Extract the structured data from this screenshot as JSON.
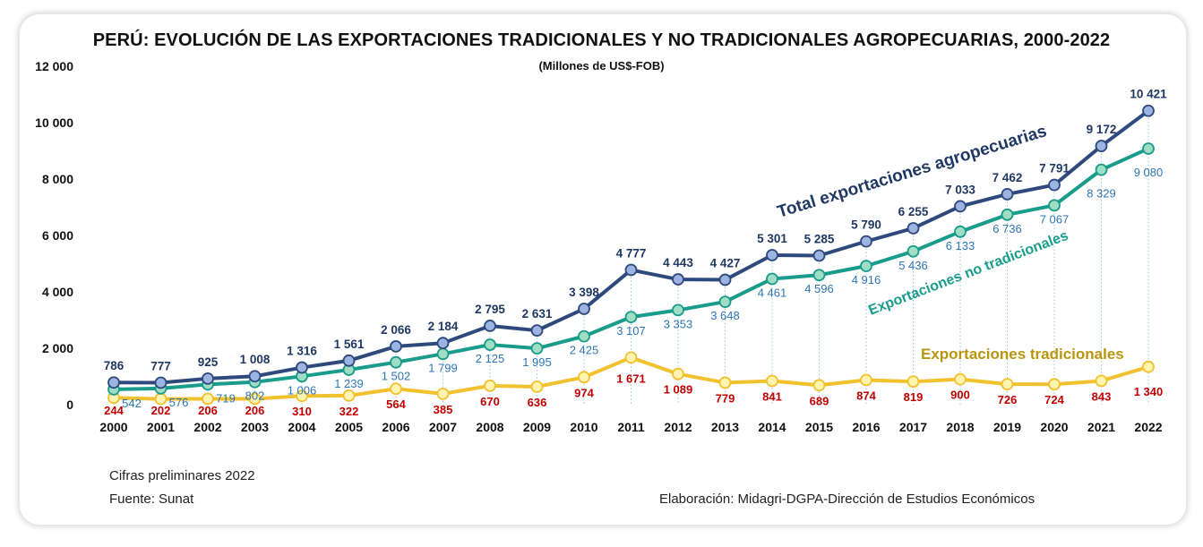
{
  "colors": {
    "total": "#2E4A7D",
    "total_fill": "#9DB3E2",
    "no_trad": "#199C8B",
    "no_trad_fill": "#9FDDC4",
    "trad": "#F2C12E",
    "trad_fill": "#FFF4B0",
    "total_label": "#1F3864",
    "no_trad_label": "#2E75B6",
    "trad_label": "#C00000",
    "trad_name": "#B8960C"
  },
  "chart_data": {
    "type": "line",
    "title": "PERÚ: EVOLUCIÓN DE LAS EXPORTACIONES TRADICIONALES Y NO TRADICIONALES AGROPECUARIAS, 2000-2022",
    "subtitle": "(Millones de US$-FOB)",
    "x": [
      "2000",
      "2001",
      "2002",
      "2003",
      "2004",
      "2005",
      "2006",
      "2007",
      "2008",
      "2009",
      "2010",
      "2011",
      "2012",
      "2013",
      "2014",
      "2015",
      "2016",
      "2017",
      "2018",
      "2019",
      "2020",
      "2021",
      "2022"
    ],
    "ylim": [
      0,
      12000
    ],
    "yticks": [
      0,
      2000,
      4000,
      6000,
      8000,
      10000,
      12000
    ],
    "ytick_labels": [
      "0",
      "2 000",
      "4 000",
      "6 000",
      "8 000",
      "10 000",
      "12 000"
    ],
    "grid": false,
    "legend": "inline labels",
    "series": [
      {
        "name": "Total exportaciones agropecuarias",
        "values": [
          786,
          777,
          925,
          1008,
          1316,
          1561,
          2066,
          2184,
          2795,
          2631,
          3398,
          4777,
          4443,
          4427,
          5301,
          5285,
          5790,
          6255,
          7033,
          7462,
          7791,
          9172,
          10421
        ],
        "labels": [
          "786",
          "777",
          "925",
          "1 008",
          "1 316",
          "1 561",
          "2 066",
          "2 184",
          "2 795",
          "2 631",
          "3 398",
          "4 777",
          "4 443",
          "4 427",
          "5 301",
          "5 285",
          "5 790",
          "6 255",
          "7 033",
          "7 462",
          "7 791",
          "9 172",
          "10 421"
        ]
      },
      {
        "name": "Exportaciones no tradicionales",
        "values": [
          542,
          576,
          719,
          802,
          1006,
          1239,
          1502,
          1799,
          2125,
          1995,
          2425,
          3107,
          3353,
          3648,
          4461,
          4596,
          4916,
          5436,
          6133,
          6736,
          7067,
          8329,
          9080
        ],
        "labels": [
          "542",
          "576",
          "719",
          "802",
          "1 006",
          "1 239",
          "1 502",
          "1 799",
          "2 125",
          "1 995",
          "2 425",
          "3 107",
          "3 353",
          "3 648",
          "4 461",
          "4 596",
          "4 916",
          "5 436",
          "6 133",
          "6 736",
          "7 067",
          "8 329",
          "9 080"
        ]
      },
      {
        "name": "Exportaciones tradicionales",
        "values": [
          244,
          202,
          206,
          206,
          310,
          322,
          564,
          385,
          670,
          636,
          974,
          1671,
          1089,
          779,
          841,
          689,
          874,
          819,
          900,
          726,
          724,
          843,
          1340
        ],
        "labels": [
          "244",
          "202",
          "206",
          "206",
          "310",
          "322",
          "564",
          "385",
          "670",
          "636",
          "974",
          "1 671",
          "1 089",
          "779",
          "841",
          "689",
          "874",
          "819",
          "900",
          "726",
          "724",
          "843",
          "1 340"
        ]
      }
    ]
  },
  "notes": {
    "preliminary": "Cifras preliminares 2022",
    "source": "Fuente: Sunat",
    "credit": "Elaboración: Midagri-DGPA-Dirección de Estudios Económicos"
  }
}
